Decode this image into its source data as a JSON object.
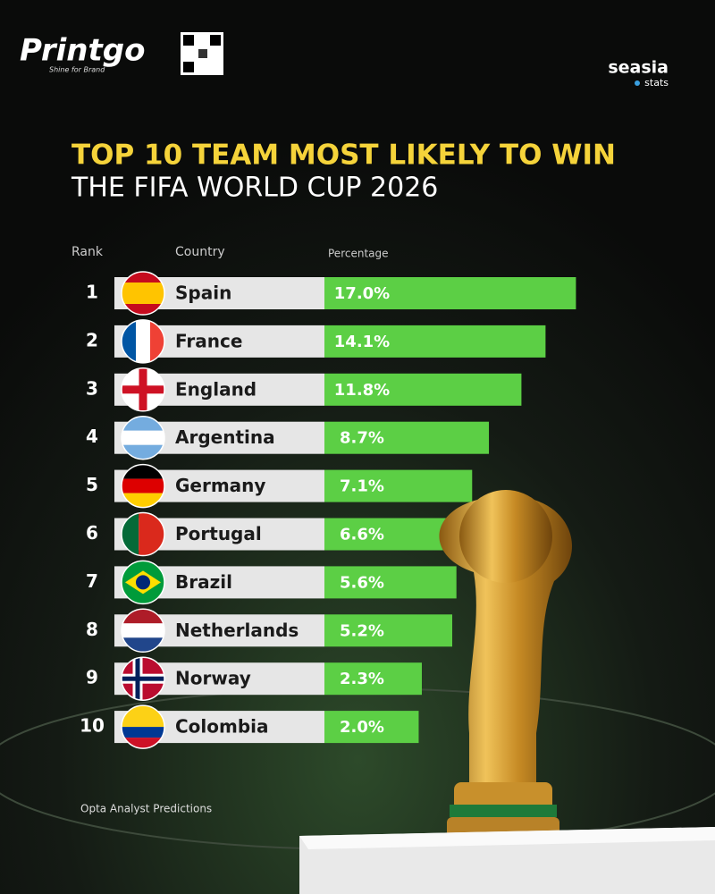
{
  "header": {
    "logo": "Printgo",
    "logo_tagline": "Shine for Brand",
    "brand": "seasia",
    "brand_sub": "stats"
  },
  "chart_data": {
    "type": "bar",
    "orientation": "horizontal",
    "title": "TOP 10 TEAM MOST LIKELY TO WIN",
    "subtitle": "THE FIFA WORLD CUP 2026",
    "rank_header": "Rank",
    "category_header": "Country",
    "value_header": "Percentage",
    "ranks": [
      1,
      2,
      3,
      4,
      5,
      6,
      7,
      8,
      9,
      10
    ],
    "categories": [
      "Spain",
      "France",
      "England",
      "Argentina",
      "Germany",
      "Portugal",
      "Brazil",
      "Netherlands",
      "Norway",
      "Colombia"
    ],
    "values": [
      17.0,
      14.1,
      11.8,
      8.7,
      7.1,
      6.6,
      5.6,
      5.2,
      2.3,
      2.0
    ],
    "value_labels": [
      "17.0%",
      "14.1%",
      "11.8%",
      "8.7%",
      "7.1%",
      "6.6%",
      "5.6%",
      "5.2%",
      "2.3%",
      "2.0%"
    ],
    "color": "#5ccf45",
    "source": "Opta Analyst Predictions"
  }
}
